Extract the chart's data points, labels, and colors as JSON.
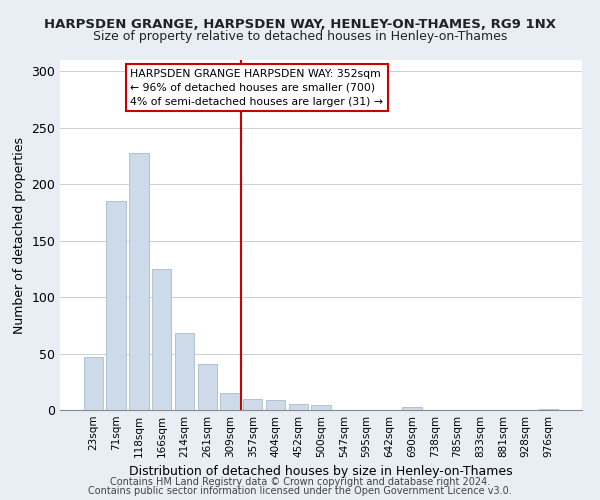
{
  "title": "HARPSDEN GRANGE, HARPSDEN WAY, HENLEY-ON-THAMES, RG9 1NX",
  "subtitle": "Size of property relative to detached houses in Henley-on-Thames",
  "xlabel": "Distribution of detached houses by size in Henley-on-Thames",
  "ylabel": "Number of detached properties",
  "bar_labels": [
    "23sqm",
    "71sqm",
    "118sqm",
    "166sqm",
    "214sqm",
    "261sqm",
    "309sqm",
    "357sqm",
    "404sqm",
    "452sqm",
    "500sqm",
    "547sqm",
    "595sqm",
    "642sqm",
    "690sqm",
    "738sqm",
    "785sqm",
    "833sqm",
    "881sqm",
    "928sqm",
    "976sqm"
  ],
  "bar_values": [
    47,
    185,
    228,
    125,
    68,
    41,
    15,
    10,
    9,
    5,
    4,
    0,
    0,
    0,
    3,
    0,
    0,
    0,
    0,
    0,
    1
  ],
  "bar_color": "#ccdaea",
  "bar_edge_color": "#aabccc",
  "vline_index": 7,
  "vline_color": "#cc0000",
  "ylim": [
    0,
    310
  ],
  "yticks": [
    0,
    50,
    100,
    150,
    200,
    250,
    300
  ],
  "annotation_title": "HARPSDEN GRANGE HARPSDEN WAY: 352sqm",
  "annotation_line1": "← 96% of detached houses are smaller (700)",
  "annotation_line2": "4% of semi-detached houses are larger (31) →",
  "footer1": "Contains HM Land Registry data © Crown copyright and database right 2024.",
  "footer2": "Contains public sector information licensed under the Open Government Licence v3.0.",
  "bg_color": "#e8eef4",
  "plot_bg_color": "#ffffff",
  "grid_color": "#c8d0d8"
}
